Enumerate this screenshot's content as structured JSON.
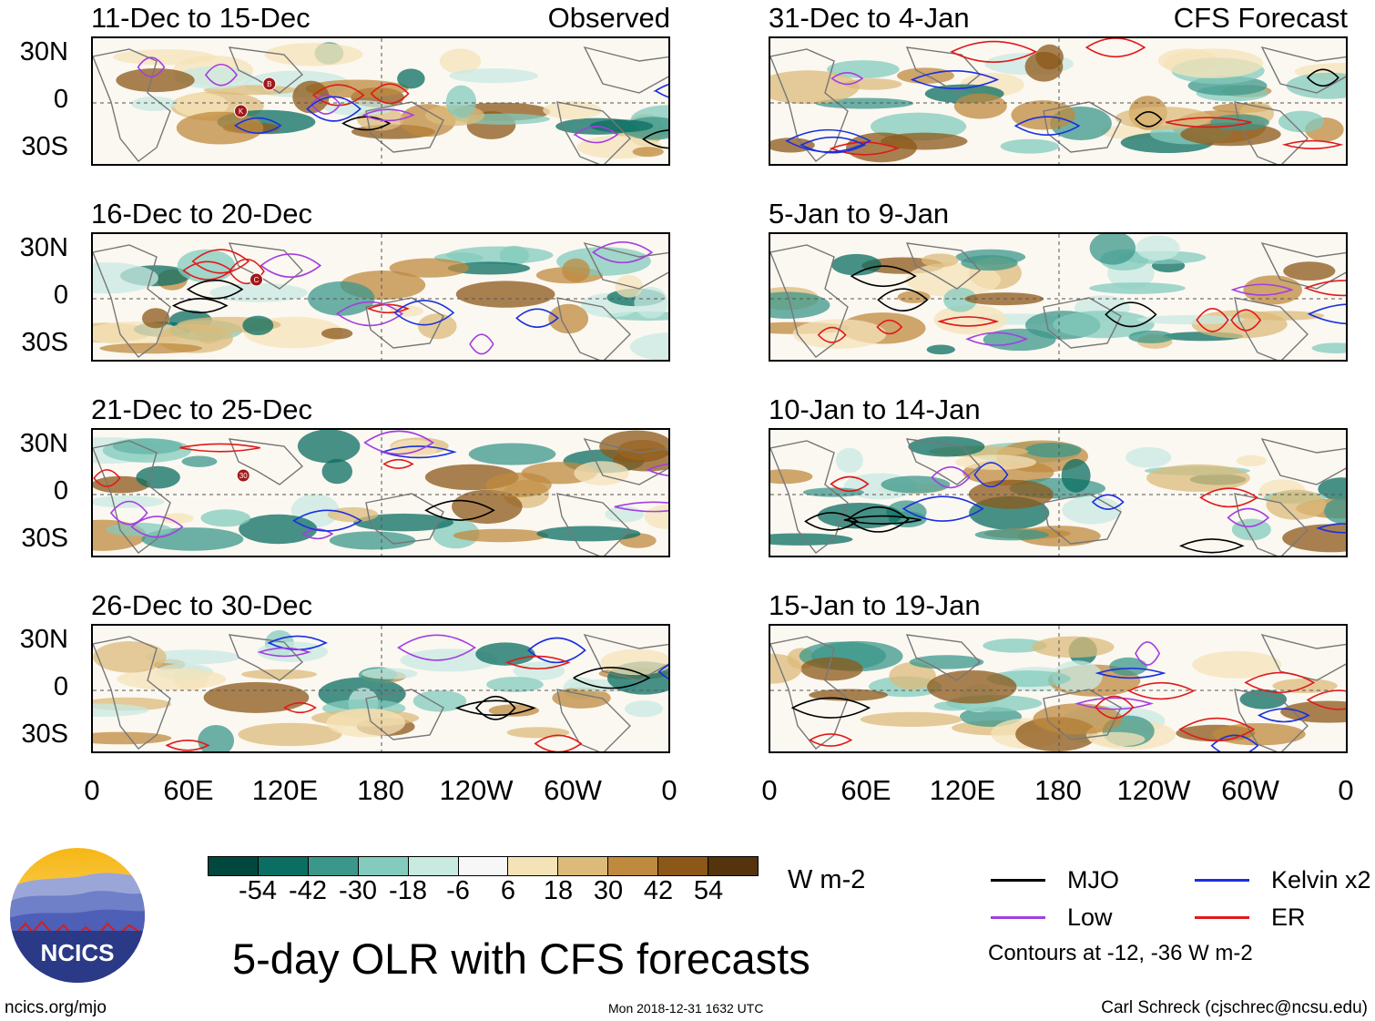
{
  "panels_left": {
    "tag": "Observed",
    "periods": [
      "11-Dec to 15-Dec",
      "16-Dec to 20-Dec",
      "21-Dec to 25-Dec",
      "26-Dec to 30-Dec"
    ]
  },
  "panels_right": {
    "tag": "CFS Forecast",
    "periods": [
      "31-Dec to 4-Jan",
      "5-Jan to 9-Jan",
      "10-Jan to 14-Jan",
      "15-Jan to 19-Jan"
    ]
  },
  "lat_labels": [
    "30N",
    "0",
    "30S"
  ],
  "lon_labels": [
    "0",
    "60E",
    "120E",
    "180",
    "120W",
    "60W",
    "0"
  ],
  "markers": [
    "B",
    "K",
    "C",
    "30"
  ],
  "colorbar": {
    "labels": [
      "-54",
      "-42",
      "-30",
      "-18",
      "-6",
      "6",
      "18",
      "30",
      "42",
      "54"
    ],
    "colors": [
      "#00473d",
      "#0b6e62",
      "#3c978b",
      "#83cbbc",
      "#c8eae1",
      "#f7f7f7",
      "#f5e3b8",
      "#dcbb7a",
      "#bf8a3d",
      "#8c5818",
      "#55330d"
    ],
    "units": "W m-2"
  },
  "legend": {
    "items": [
      {
        "label": "MJO",
        "color": "#000000"
      },
      {
        "label": "Kelvin x2",
        "color": "#1a2fe0"
      },
      {
        "label": "Low",
        "color": "#a43ee0"
      },
      {
        "label": "ER",
        "color": "#e01a1a"
      }
    ],
    "contours_note": "Contours at -12, -36 W m-2"
  },
  "title": "5-day OLR with CFS forecasts",
  "logo_text": "NCICS",
  "footer": {
    "url": "ncics.org/mjo",
    "timestamp": "Mon 2018-12-31 1632 UTC",
    "credit": "Carl Schreck (cjschrec@ncsu.edu)"
  }
}
